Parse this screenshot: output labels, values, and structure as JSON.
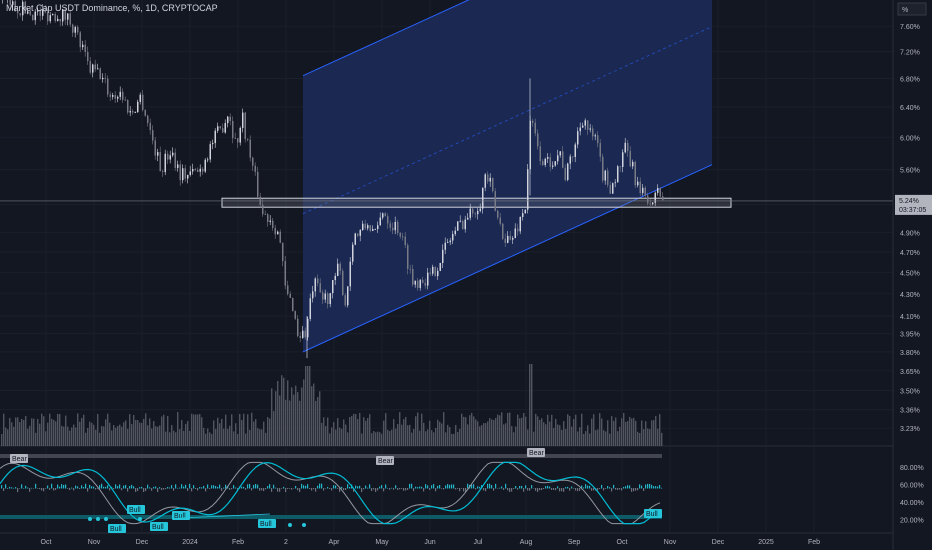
{
  "title": "Market Cap USDT Dominance, %, 1D, CRYPTOCAP",
  "price_axis": {
    "unit": "%",
    "ticks": [
      "7.60%",
      "7.20%",
      "6.80%",
      "6.40%",
      "6.00%",
      "5.60%",
      "5.20%",
      "4.90%",
      "4.70%",
      "4.50%",
      "4.30%",
      "4.10%",
      "3.95%",
      "3.80%",
      "3.65%",
      "3.50%",
      "3.36%",
      "3.23%"
    ],
    "current_value": "5.24%",
    "countdown": "03:37:05"
  },
  "time_axis": {
    "labels": [
      "Oct",
      "Nov",
      "Dec",
      "2024",
      "Feb",
      "2",
      "Apr",
      "May",
      "Jun",
      "Jul",
      "Aug",
      "Sep",
      "Oct",
      "Nov",
      "Dec",
      "2025",
      "Feb"
    ]
  },
  "oscillator": {
    "ticks": [
      "80.00%",
      "60.00%",
      "40.00%",
      "20.00%"
    ],
    "labels": {
      "bear": "Bear",
      "bull": "Bull"
    }
  },
  "colors": {
    "background": "#131722",
    "up": "#d1d4dc",
    "down": "#787b86",
    "channel_line": "#2962ff",
    "channel_fill": "#1c2b5a",
    "oscillator_line": "#00bcd4",
    "oscillator_signal": "#9598a1",
    "band": "#0e5a66"
  },
  "chart_data": {
    "type": "candlestick",
    "title": "Market Cap USDT Dominance, %, 1D, CRYPTOCAP",
    "unit": "%",
    "log_scale": true,
    "ylim": [
      3.15,
      7.9
    ],
    "x": [
      "Oct 2023",
      "Nov 2023",
      "Dec 2023",
      "Jan 2024",
      "Feb 2024",
      "Mar 2024",
      "Apr 2024",
      "May 2024",
      "Jun 2024",
      "Jul 2024",
      "Aug 2024",
      "Sep 2024",
      "Oct 2024",
      "Nov 2024",
      "Dec 2024",
      "Jan 2025",
      "Feb 2025"
    ],
    "series": [
      {
        "close": [
          8.0,
          6.9,
          6.0,
          5.9,
          5.5,
          4.0,
          4.85,
          4.55,
          4.55,
          5.3,
          5.75,
          6.05,
          5.25,
          null,
          null,
          null,
          null
        ]
      }
    ],
    "price_path": [
      [
        0,
        8.05
      ],
      [
        12,
        7.95
      ],
      [
        35,
        7.8
      ],
      [
        60,
        7.8
      ],
      [
        70,
        7.7
      ],
      [
        80,
        7.3
      ],
      [
        88,
        6.95
      ],
      [
        100,
        6.85
      ],
      [
        110,
        6.55
      ],
      [
        120,
        6.6
      ],
      [
        130,
        6.3
      ],
      [
        140,
        6.55
      ],
      [
        150,
        6.05
      ],
      [
        160,
        5.6
      ],
      [
        170,
        5.85
      ],
      [
        180,
        5.55
      ],
      [
        190,
        5.55
      ],
      [
        200,
        5.6
      ],
      [
        210,
        5.9
      ],
      [
        220,
        6.1
      ],
      [
        228,
        6.35
      ],
      [
        235,
        5.9
      ],
      [
        242,
        6.25
      ],
      [
        248,
        5.85
      ],
      [
        255,
        5.45
      ],
      [
        262,
        5.1
      ],
      [
        270,
        5.05
      ],
      [
        278,
        4.9
      ],
      [
        285,
        4.3
      ],
      [
        292,
        4.2
      ],
      [
        297,
        3.95
      ],
      [
        305,
        3.95
      ],
      [
        313,
        4.4
      ],
      [
        322,
        4.25
      ],
      [
        330,
        4.3
      ],
      [
        338,
        4.55
      ],
      [
        345,
        4.2
      ],
      [
        352,
        4.85
      ],
      [
        360,
        4.9
      ],
      [
        368,
        5.0
      ],
      [
        375,
        4.85
      ],
      [
        382,
        5.15
      ],
      [
        390,
        5.0
      ],
      [
        398,
        4.95
      ],
      [
        405,
        4.7
      ],
      [
        412,
        4.4
      ],
      [
        420,
        4.45
      ],
      [
        430,
        4.45
      ],
      [
        440,
        4.65
      ],
      [
        450,
        4.85
      ],
      [
        460,
        5.0
      ],
      [
        470,
        5.1
      ],
      [
        480,
        5.25
      ],
      [
        485,
        5.55
      ],
      [
        490,
        5.4
      ],
      [
        495,
        5.1
      ],
      [
        502,
        4.9
      ],
      [
        510,
        4.8
      ],
      [
        518,
        5.0
      ],
      [
        525,
        5.2
      ],
      [
        530,
        6.25
      ],
      [
        538,
        5.8
      ],
      [
        545,
        5.65
      ],
      [
        552,
        5.75
      ],
      [
        560,
        5.8
      ],
      [
        565,
        5.5
      ],
      [
        572,
        5.8
      ],
      [
        578,
        6.1
      ],
      [
        583,
        6.3
      ],
      [
        588,
        6.05
      ],
      [
        595,
        5.95
      ],
      [
        602,
        5.55
      ],
      [
        610,
        5.4
      ],
      [
        618,
        5.6
      ],
      [
        625,
        5.85
      ],
      [
        632,
        5.6
      ],
      [
        640,
        5.3
      ],
      [
        647,
        5.3
      ],
      [
        652,
        5.15
      ],
      [
        657,
        5.4
      ],
      [
        662,
        5.25
      ]
    ],
    "sr_zone": {
      "bottom": 5.17,
      "top": 5.27
    },
    "channel": {
      "lower": [
        [
          303,
          3.8
        ],
        [
          712,
          5.66
        ]
      ],
      "width": 1.8
    }
  }
}
